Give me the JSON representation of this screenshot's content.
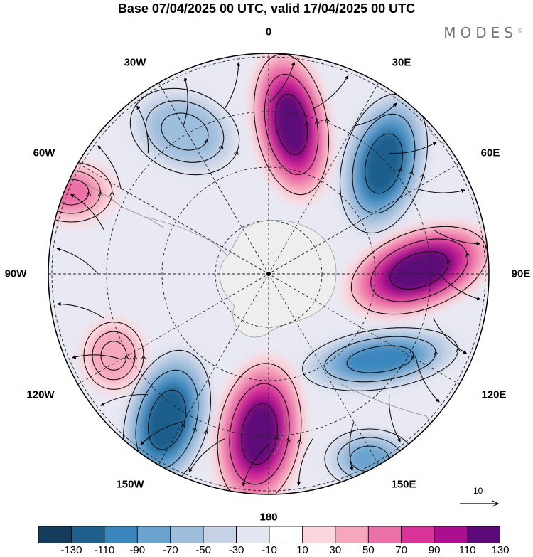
{
  "title": "Base 07/04/2025 00 UTC, valid 17/04/2025 00 UTC",
  "brand": "MODES",
  "brand_mark": "©",
  "longitude_labels": {
    "top": "0",
    "top_left": "30W",
    "top_right": "30E",
    "left_upper": "60W",
    "right_upper": "60E",
    "left": "90W",
    "right": "90E",
    "left_lower": "120W",
    "right_lower": "120E",
    "bottom_left": "150W",
    "bottom_right": "150E",
    "bottom": "180"
  },
  "vector_scale_label": "10",
  "colorbar": {
    "colors": [
      "#163c5c",
      "#1e5f8c",
      "#3a86bd",
      "#6aa4cf",
      "#9ebedd",
      "#c6d2e6",
      "#e4e6f1",
      "#ffffff",
      "#fbd6dc",
      "#f5a8bd",
      "#ec70a8",
      "#d9339a",
      "#ab0f8e",
      "#5b0a78"
    ],
    "tick_labels": [
      "-130",
      "-110",
      "-90",
      "-70",
      "-50",
      "-30",
      "-10",
      "10",
      "30",
      "50",
      "70",
      "90",
      "110",
      "130"
    ]
  },
  "anomaly_centers": [
    {
      "name": "positive-0E",
      "sign": "+",
      "peak": 120
    },
    {
      "name": "negative-30E",
      "sign": "-",
      "peak": -120
    },
    {
      "name": "positive-90E",
      "sign": "+",
      "peak": 125
    },
    {
      "name": "negative-120E",
      "sign": "-",
      "peak": -95
    },
    {
      "name": "negative-150E",
      "sign": "-",
      "peak": -70
    },
    {
      "name": "positive-180",
      "sign": "+",
      "peak": 120
    },
    {
      "name": "negative-150W",
      "sign": "-",
      "peak": -125
    },
    {
      "name": "positive-120W",
      "sign": "+",
      "peak": 45
    },
    {
      "name": "positive-60W",
      "sign": "+",
      "peak": 50
    },
    {
      "name": "negative-30W",
      "sign": "-",
      "peak": -65
    }
  ]
}
